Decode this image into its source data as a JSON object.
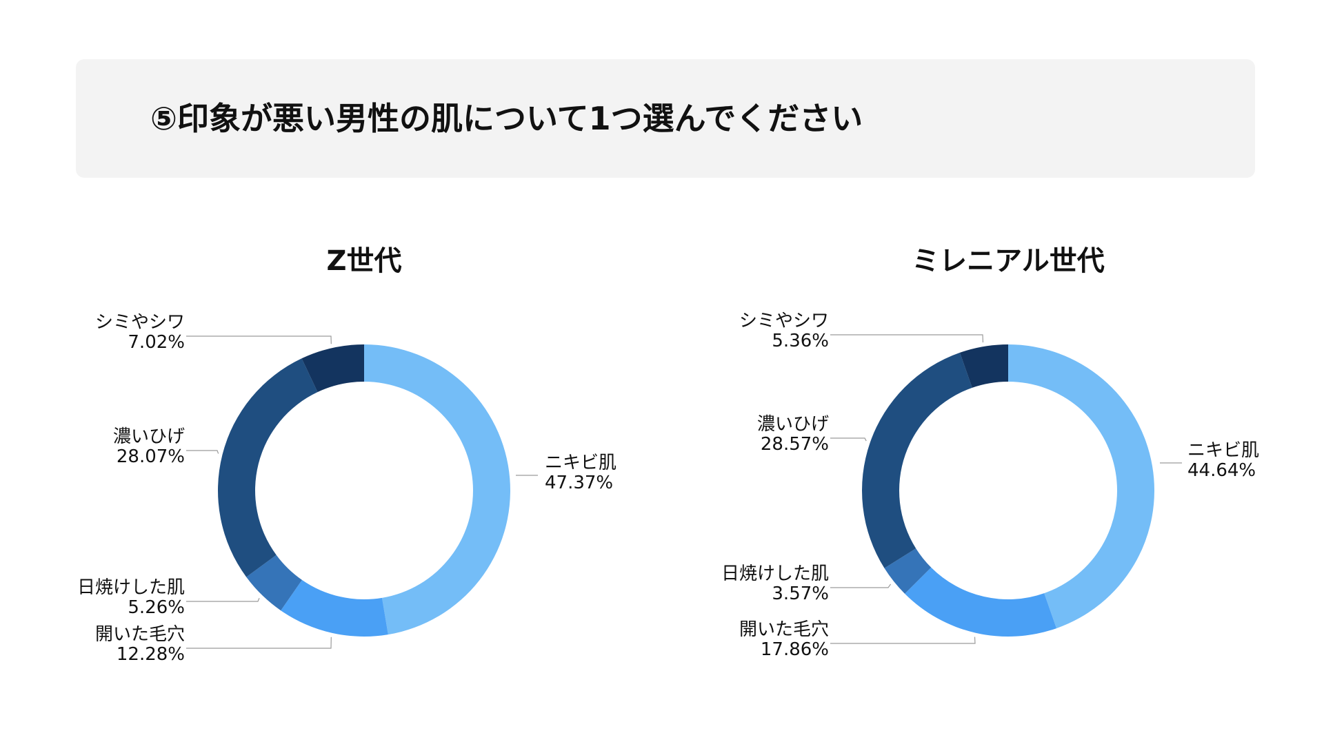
{
  "question": {
    "title": "⑤印象が悪い男性の肌について1つ選んでください"
  },
  "colors": {
    "background": "#ffffff",
    "banner": "#f3f3f3",
    "leader_line": "#9a9a9a",
    "text": "#111111"
  },
  "chart_data": [
    {
      "type": "pie",
      "donut": true,
      "title": "Z世代",
      "unit": "%",
      "slices": [
        {
          "label": "ニキビ肌",
          "value": 47.37,
          "display": "47.37%",
          "color": "#74bdf7"
        },
        {
          "label": "開いた毛穴",
          "value": 12.28,
          "display": "12.28%",
          "color": "#4aa0f5"
        },
        {
          "label": "日焼けした肌",
          "value": 5.26,
          "display": "5.26%",
          "color": "#3574b8"
        },
        {
          "label": "濃いひげ",
          "value": 28.07,
          "display": "28.07%",
          "color": "#1f4e80"
        },
        {
          "label": "シミやシワ",
          "value": 7.02,
          "display": "7.02%",
          "color": "#13345f"
        }
      ]
    },
    {
      "type": "pie",
      "donut": true,
      "title": "ミレニアル世代",
      "unit": "%",
      "slices": [
        {
          "label": "ニキビ肌",
          "value": 44.64,
          "display": "44.64%",
          "color": "#74bdf7"
        },
        {
          "label": "開いた毛穴",
          "value": 17.86,
          "display": "17.86%",
          "color": "#4aa0f5"
        },
        {
          "label": "日焼けした肌",
          "value": 3.57,
          "display": "3.57%",
          "color": "#3574b8"
        },
        {
          "label": "濃いひげ",
          "value": 28.57,
          "display": "28.57%",
          "color": "#1f4e80"
        },
        {
          "label": "シミやシワ",
          "value": 5.36,
          "display": "5.36%",
          "color": "#13345f"
        }
      ]
    }
  ]
}
